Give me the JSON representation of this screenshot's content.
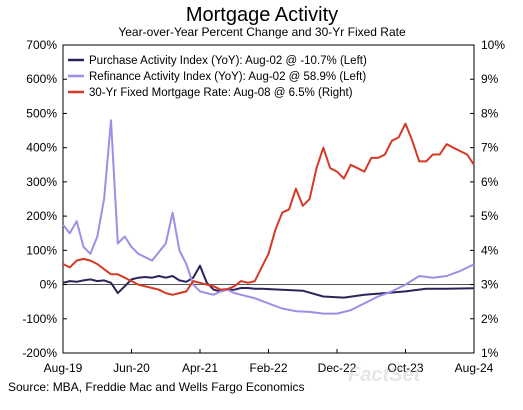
{
  "chart_data": {
    "type": "line",
    "title": "Mortgage Activity",
    "subtitle": "Year-over-Year Percent Change and 30-Yr Fixed Rate",
    "source": "Source: MBA, Freddie Mac and Wells Fargo Economics",
    "watermark": "FactSet",
    "x_ticks": [
      "Aug-19",
      "Jun-20",
      "Apr-21",
      "Feb-22",
      "Dec-22",
      "Oct-23",
      "Aug-24"
    ],
    "x_range": [
      "2019-08",
      "2024-08"
    ],
    "left_axis": {
      "range": [
        -200,
        700
      ],
      "ticks": [
        "-200%",
        "-100%",
        "0%",
        "100%",
        "200%",
        "300%",
        "400%",
        "500%",
        "600%",
        "700%"
      ]
    },
    "right_axis": {
      "range": [
        1,
        10
      ],
      "ticks": [
        "1%",
        "2%",
        "3%",
        "4%",
        "5%",
        "6%",
        "7%",
        "8%",
        "9%",
        "10%"
      ]
    },
    "zero_line": true,
    "grid": false,
    "legend_position": "top-left",
    "series": [
      {
        "name": "Purchase Activity Index (YoY): Aug-02 @ -10.7% (Left)",
        "axis": "left",
        "color": "#2a2459",
        "points": [
          [
            "2019-08",
            5
          ],
          [
            "2019-09",
            10
          ],
          [
            "2019-10",
            8
          ],
          [
            "2019-11",
            12
          ],
          [
            "2019-12",
            15
          ],
          [
            "2020-01",
            10
          ],
          [
            "2020-02",
            12
          ],
          [
            "2020-03",
            5
          ],
          [
            "2020-04",
            -25
          ],
          [
            "2020-05",
            -5
          ],
          [
            "2020-06",
            15
          ],
          [
            "2020-07",
            20
          ],
          [
            "2020-08",
            22
          ],
          [
            "2020-09",
            20
          ],
          [
            "2020-10",
            25
          ],
          [
            "2020-11",
            20
          ],
          [
            "2020-12",
            25
          ],
          [
            "2021-01",
            12
          ],
          [
            "2021-02",
            8
          ],
          [
            "2021-03",
            20
          ],
          [
            "2021-04",
            55
          ],
          [
            "2021-05",
            5
          ],
          [
            "2021-06",
            -15
          ],
          [
            "2021-07",
            -20
          ],
          [
            "2021-08",
            -15
          ],
          [
            "2021-09",
            -15
          ],
          [
            "2021-10",
            -10
          ],
          [
            "2021-11",
            -10
          ],
          [
            "2021-12",
            -12
          ],
          [
            "2022-01",
            -12
          ],
          [
            "2022-04",
            -15
          ],
          [
            "2022-07",
            -18
          ],
          [
            "2022-10",
            -35
          ],
          [
            "2023-01",
            -38
          ],
          [
            "2023-04",
            -30
          ],
          [
            "2023-07",
            -25
          ],
          [
            "2023-10",
            -20
          ],
          [
            "2024-01",
            -12
          ],
          [
            "2024-04",
            -12
          ],
          [
            "2024-08",
            -11
          ]
        ]
      },
      {
        "name": "Refinance Activity Index (YoY): Aug-02 @ 58.9% (Left)",
        "axis": "left",
        "color": "#9e8fe6",
        "points": [
          [
            "2019-08",
            175
          ],
          [
            "2019-09",
            150
          ],
          [
            "2019-10",
            185
          ],
          [
            "2019-11",
            110
          ],
          [
            "2019-12",
            90
          ],
          [
            "2020-01",
            140
          ],
          [
            "2020-02",
            250
          ],
          [
            "2020-03",
            480
          ],
          [
            "2020-04",
            120
          ],
          [
            "2020-05",
            140
          ],
          [
            "2020-06",
            110
          ],
          [
            "2020-07",
            90
          ],
          [
            "2020-08",
            80
          ],
          [
            "2020-09",
            70
          ],
          [
            "2020-10",
            95
          ],
          [
            "2020-11",
            120
          ],
          [
            "2020-12",
            210
          ],
          [
            "2021-01",
            100
          ],
          [
            "2021-02",
            60
          ],
          [
            "2021-03",
            0
          ],
          [
            "2021-04",
            -20
          ],
          [
            "2021-05",
            -25
          ],
          [
            "2021-06",
            -30
          ],
          [
            "2021-07",
            -20
          ],
          [
            "2021-08",
            -15
          ],
          [
            "2021-09",
            -25
          ],
          [
            "2021-10",
            -30
          ],
          [
            "2021-11",
            -35
          ],
          [
            "2021-12",
            -40
          ],
          [
            "2022-02",
            -55
          ],
          [
            "2022-04",
            -70
          ],
          [
            "2022-06",
            -78
          ],
          [
            "2022-08",
            -80
          ],
          [
            "2022-10",
            -85
          ],
          [
            "2022-12",
            -85
          ],
          [
            "2023-02",
            -75
          ],
          [
            "2023-04",
            -55
          ],
          [
            "2023-06",
            -35
          ],
          [
            "2023-08",
            -20
          ],
          [
            "2023-10",
            0
          ],
          [
            "2023-12",
            25
          ],
          [
            "2024-02",
            20
          ],
          [
            "2024-04",
            25
          ],
          [
            "2024-06",
            40
          ],
          [
            "2024-08",
            59
          ]
        ]
      },
      {
        "name": "30-Yr Fixed Mortgage Rate: Aug-08 @ 6.5% (Right)",
        "axis": "right",
        "color": "#d63a26",
        "points": [
          [
            "2019-08",
            3.6
          ],
          [
            "2019-09",
            3.5
          ],
          [
            "2019-10",
            3.7
          ],
          [
            "2019-11",
            3.75
          ],
          [
            "2019-12",
            3.7
          ],
          [
            "2020-01",
            3.6
          ],
          [
            "2020-02",
            3.45
          ],
          [
            "2020-03",
            3.3
          ],
          [
            "2020-04",
            3.3
          ],
          [
            "2020-05",
            3.2
          ],
          [
            "2020-06",
            3.1
          ],
          [
            "2020-07",
            3.0
          ],
          [
            "2020-08",
            2.95
          ],
          [
            "2020-09",
            2.9
          ],
          [
            "2020-10",
            2.85
          ],
          [
            "2020-11",
            2.75
          ],
          [
            "2020-12",
            2.7
          ],
          [
            "2021-01",
            2.75
          ],
          [
            "2021-02",
            2.8
          ],
          [
            "2021-03",
            3.1
          ],
          [
            "2021-04",
            3.05
          ],
          [
            "2021-05",
            3.0
          ],
          [
            "2021-06",
            2.95
          ],
          [
            "2021-07",
            2.85
          ],
          [
            "2021-08",
            2.87
          ],
          [
            "2021-09",
            2.95
          ],
          [
            "2021-10",
            3.1
          ],
          [
            "2021-11",
            3.05
          ],
          [
            "2021-12",
            3.1
          ],
          [
            "2022-01",
            3.5
          ],
          [
            "2022-02",
            3.9
          ],
          [
            "2022-03",
            4.6
          ],
          [
            "2022-04",
            5.1
          ],
          [
            "2022-05",
            5.2
          ],
          [
            "2022-06",
            5.8
          ],
          [
            "2022-07",
            5.3
          ],
          [
            "2022-08",
            5.5
          ],
          [
            "2022-09",
            6.4
          ],
          [
            "2022-10",
            7.0
          ],
          [
            "2022-11",
            6.4
          ],
          [
            "2022-12",
            6.3
          ],
          [
            "2023-01",
            6.1
          ],
          [
            "2023-02",
            6.5
          ],
          [
            "2023-03",
            6.4
          ],
          [
            "2023-04",
            6.3
          ],
          [
            "2023-05",
            6.7
          ],
          [
            "2023-06",
            6.7
          ],
          [
            "2023-07",
            6.8
          ],
          [
            "2023-08",
            7.2
          ],
          [
            "2023-09",
            7.3
          ],
          [
            "2023-10",
            7.7
          ],
          [
            "2023-11",
            7.2
          ],
          [
            "2023-12",
            6.6
          ],
          [
            "2024-01",
            6.6
          ],
          [
            "2024-02",
            6.8
          ],
          [
            "2024-03",
            6.8
          ],
          [
            "2024-04",
            7.1
          ],
          [
            "2024-05",
            7.0
          ],
          [
            "2024-06",
            6.9
          ],
          [
            "2024-07",
            6.8
          ],
          [
            "2024-08",
            6.5
          ]
        ]
      }
    ]
  }
}
